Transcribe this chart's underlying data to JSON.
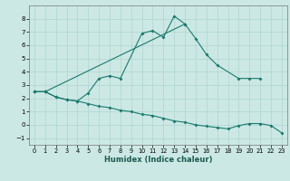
{
  "xlabel": "Humidex (Indice chaleur)",
  "background_color": "#cce8e4",
  "grid_color": "#aed4d0",
  "line_color": "#1a7a6e",
  "xlim": [
    -0.5,
    23.5
  ],
  "ylim": [
    -1.5,
    9.0
  ],
  "yticks": [
    -1,
    0,
    1,
    2,
    3,
    4,
    5,
    6,
    7,
    8
  ],
  "xticks": [
    0,
    1,
    2,
    3,
    4,
    5,
    6,
    7,
    8,
    9,
    10,
    11,
    12,
    13,
    14,
    15,
    16,
    17,
    18,
    19,
    20,
    21,
    22,
    23
  ],
  "line1_x": [
    0,
    1,
    2,
    3,
    4,
    5,
    6,
    7,
    8,
    10,
    11,
    12,
    13,
    14
  ],
  "line1_y": [
    2.5,
    2.5,
    2.1,
    1.9,
    1.8,
    2.4,
    3.5,
    3.7,
    3.5,
    6.9,
    7.1,
    6.6,
    8.2,
    7.6
  ],
  "line2_x": [
    0,
    1,
    14,
    15,
    16,
    17,
    19,
    20,
    21
  ],
  "line2_y": [
    2.5,
    2.5,
    7.6,
    6.5,
    5.3,
    4.5,
    3.5,
    3.5,
    3.5
  ],
  "line3_x": [
    0,
    1,
    2,
    3,
    4,
    5,
    6,
    7,
    8,
    9,
    10,
    11,
    12,
    13,
    14,
    15,
    16,
    17,
    18,
    19,
    20,
    21,
    22,
    23
  ],
  "line3_y": [
    2.5,
    2.5,
    2.1,
    1.9,
    1.8,
    1.6,
    1.4,
    1.3,
    1.1,
    1.0,
    0.8,
    0.7,
    0.5,
    0.3,
    0.2,
    0.0,
    -0.1,
    -0.2,
    -0.3,
    -0.05,
    0.1,
    0.1,
    -0.05,
    -0.6
  ]
}
